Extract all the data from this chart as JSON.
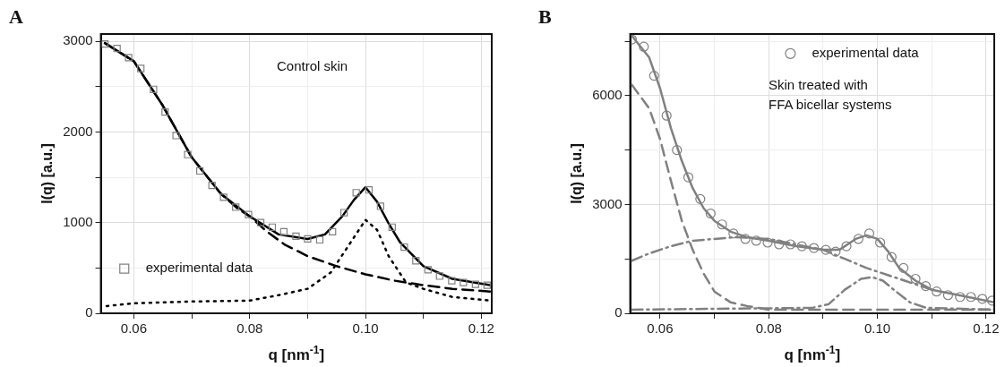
{
  "chart_data": [
    {
      "type": "line",
      "title": "A",
      "xlabel": "q [nm$^{-1}$]",
      "ylabel": "I(q) [a.u.]",
      "annotations": [
        "Control skin"
      ],
      "legend": "bottom left",
      "grid": true,
      "xlim": [
        0.0543,
        0.1218
      ],
      "xticks": [
        0.06,
        {
          "value": 0.07,
          "label": null
        },
        0.08,
        {
          "value": 0.09,
          "label": null
        },
        {
          "value": 0.1,
          "label": "0.10"
        },
        {
          "value": 0.11,
          "label": null
        },
        0.12
      ],
      "ylim": [
        0,
        3080
      ],
      "yticks": [
        0,
        {
          "value": 500,
          "label": null
        },
        1000,
        {
          "value": 1500,
          "label": null
        },
        2000,
        {
          "value": 2500,
          "label": null
        },
        3000
      ],
      "series": [
        {
          "type": "scatter",
          "name": "experimental data",
          "color": "#808080",
          "marker": "square",
          "x": [
            0.055,
            0.0571,
            0.0591,
            0.0612,
            0.0634,
            0.0654,
            0.0673,
            0.0693,
            0.0714,
            0.0735,
            0.0755,
            0.0776,
            0.0798,
            0.0819,
            0.0839,
            0.0859,
            0.088,
            0.09,
            0.0921,
            0.0943,
            0.0963,
            0.0984,
            0.1006,
            0.1026,
            0.1046,
            0.1067,
            0.1087,
            0.1108,
            0.1128,
            0.1149,
            0.1169,
            0.119,
            0.121
          ],
          "values": [
            2970,
            2920,
            2820,
            2700,
            2470,
            2220,
            1960,
            1750,
            1570,
            1410,
            1280,
            1170,
            1090,
            1000,
            950,
            900,
            850,
            820,
            810,
            900,
            1110,
            1330,
            1360,
            1180,
            950,
            730,
            580,
            480,
            410,
            360,
            340,
            320,
            310
          ]
        },
        {
          "type": "line",
          "color": "#000000",
          "marker": "none",
          "line_style": "solid",
          "x": [
            0.055,
            0.06,
            0.065,
            0.07,
            0.075,
            0.08,
            0.085,
            0.09,
            0.093,
            0.096,
            0.098,
            0.1,
            0.102,
            0.104,
            0.106,
            0.11,
            0.115,
            0.1215
          ],
          "values": [
            2980,
            2780,
            2290,
            1720,
            1320,
            1070,
            870,
            820,
            870,
            1070,
            1250,
            1390,
            1230,
            990,
            780,
            520,
            380,
            310
          ]
        },
        {
          "type": "line",
          "color": "#000000",
          "marker": "none",
          "line_style": "dashed",
          "x": [
            0.055,
            0.06,
            0.065,
            0.07,
            0.075,
            0.078,
            0.08,
            0.083,
            0.086,
            0.09,
            0.095,
            0.1,
            0.105,
            0.11,
            0.115,
            0.1215
          ],
          "values": [
            2980,
            2780,
            2290,
            1720,
            1320,
            1150,
            1070,
            900,
            760,
            630,
            520,
            430,
            360,
            310,
            270,
            240
          ]
        },
        {
          "type": "line",
          "color": "#000000",
          "marker": "none",
          "line_style": "dotted",
          "x": [
            0.0553,
            0.06,
            0.07,
            0.08,
            0.085,
            0.09,
            0.094,
            0.097,
            0.1,
            0.102,
            0.104,
            0.107,
            0.11,
            0.115,
            0.1215
          ],
          "values": [
            80,
            110,
            130,
            140,
            200,
            270,
            450,
            740,
            1030,
            920,
            630,
            340,
            270,
            180,
            140
          ]
        }
      ]
    },
    {
      "type": "line",
      "title": "B",
      "xlabel": "q [nm$^{-1}$]",
      "ylabel": "I(q) [a.u.]",
      "annotations": [
        "Skin treated with\nFFA bicellar systems"
      ],
      "legend": "top right",
      "grid": true,
      "xlim": [
        0.0545,
        0.1215
      ],
      "xticks": [
        0.06,
        {
          "value": 0.07,
          "label": null
        },
        0.08,
        {
          "value": 0.09,
          "label": null
        },
        {
          "value": 0.1,
          "label": "0.10"
        },
        {
          "value": 0.11,
          "label": null
        },
        0.12
      ],
      "ylim": [
        0,
        7700
      ],
      "yticks": [
        0,
        {
          "value": 1500,
          "label": null
        },
        3000,
        {
          "value": 4500,
          "label": null
        },
        6000,
        {
          "value": 7500,
          "label": null
        }
      ],
      "series": [
        {
          "type": "scatter",
          "name": "experimental data",
          "color": "#808080",
          "marker": "circle",
          "x": [
            0.0548,
            0.057,
            0.0589,
            0.0612,
            0.0631,
            0.0652,
            0.0674,
            0.0693,
            0.0714,
            0.0735,
            0.0757,
            0.0777,
            0.0798,
            0.0819,
            0.084,
            0.0861,
            0.0883,
            0.0905,
            0.0923,
            0.0943,
            0.0965,
            0.0985,
            0.1005,
            0.1026,
            0.1048,
            0.107,
            0.1089,
            0.1109,
            0.113,
            0.1152,
            0.1172,
            0.1193,
            0.1211
          ],
          "values": [
            7550,
            7350,
            6550,
            5450,
            4500,
            3750,
            3150,
            2750,
            2450,
            2200,
            2050,
            2000,
            1950,
            1900,
            1900,
            1850,
            1800,
            1750,
            1700,
            1850,
            2050,
            2200,
            1950,
            1550,
            1250,
            950,
            750,
            600,
            500,
            450,
            450,
            400,
            350
          ]
        },
        {
          "type": "line",
          "color": "#808080",
          "marker": "none",
          "line_style": "solid",
          "x": [
            0.0548,
            0.058,
            0.06,
            0.062,
            0.064,
            0.066,
            0.068,
            0.07,
            0.073,
            0.076,
            0.08,
            0.085,
            0.09,
            0.093,
            0.096,
            0.098,
            0.1,
            0.102,
            0.104,
            0.107,
            0.11,
            0.115,
            0.1215
          ],
          "values": [
            7650,
            7050,
            6200,
            5100,
            4200,
            3450,
            2900,
            2550,
            2250,
            2100,
            2000,
            1850,
            1750,
            1750,
            2050,
            2150,
            2050,
            1700,
            1250,
            900,
            650,
            500,
            300
          ]
        },
        {
          "type": "line",
          "color": "#808080",
          "marker": "none",
          "line_style": "dashed",
          "x": [
            0.0548,
            0.058,
            0.06,
            0.062,
            0.064,
            0.066,
            0.068,
            0.07,
            0.073,
            0.076,
            0.08,
            0.1215
          ],
          "values": [
            6300,
            5650,
            4800,
            3650,
            2550,
            1750,
            1100,
            600,
            300,
            200,
            100,
            100
          ]
        },
        {
          "type": "line",
          "color": "#808080",
          "marker": "none",
          "line_style": "dashdot",
          "x": [
            0.0548,
            0.058,
            0.062,
            0.066,
            0.07,
            0.074,
            0.08,
            0.09,
            0.094,
            0.098,
            0.1,
            0.102,
            0.105,
            0.11
          ],
          "values": [
            1450,
            1650,
            1850,
            2000,
            2050,
            2100,
            2050,
            1750,
            1500,
            1250,
            1150,
            1050,
            900,
            650
          ]
        },
        {
          "type": "line",
          "color": "#808080",
          "marker": "none",
          "line_style": "dashdot",
          "x": [
            0.0548,
            0.088,
            0.091,
            0.094,
            0.097,
            0.099,
            0.101,
            0.103,
            0.106,
            0.109,
            0.1215
          ],
          "values": [
            100,
            150,
            250,
            650,
            950,
            1000,
            900,
            650,
            300,
            150,
            100
          ]
        }
      ]
    }
  ]
}
